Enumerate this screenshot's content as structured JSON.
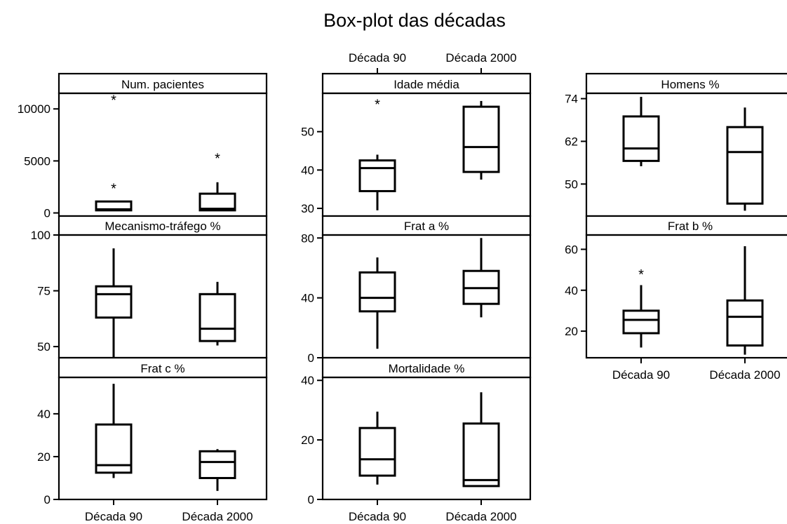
{
  "chart_data": {
    "type": "boxplot",
    "title": "Box-plot das décadas",
    "categories": [
      "Década 90",
      "Década 2000"
    ],
    "panels": [
      {
        "title": "Num. pacientes",
        "yticks": [
          0,
          5000,
          10000
        ],
        "ylim": [
          -300,
          11500
        ],
        "boxes": [
          {
            "category": "Década 90",
            "whisker_low": 250,
            "q1": 250,
            "median": 350,
            "q3": 1100,
            "whisker_high": 1100,
            "outliers": [
              2500,
              11000
            ]
          },
          {
            "category": "Década 2000",
            "whisker_low": 250,
            "q1": 250,
            "median": 400,
            "q3": 1850,
            "whisker_high": 2950,
            "outliers": [
              5400
            ]
          }
        ]
      },
      {
        "title": "Idade média",
        "yticks": [
          30,
          40,
          50
        ],
        "ylim": [
          28,
          60
        ],
        "boxes": [
          {
            "category": "Década 90",
            "whisker_low": 29.5,
            "q1": 34.5,
            "median": 40.5,
            "q3": 42.5,
            "whisker_high": 44,
            "outliers": [
              57.5
            ]
          },
          {
            "category": "Década 2000",
            "whisker_low": 37.5,
            "q1": 39.5,
            "median": 46,
            "q3": 56.5,
            "whisker_high": 58,
            "outliers": []
          }
        ]
      },
      {
        "title": "Homens %",
        "yticks": [
          50,
          62,
          74
        ],
        "ylim": [
          41,
          75.5
        ],
        "boxes": [
          {
            "category": "Década 90",
            "whisker_low": 55,
            "q1": 56.5,
            "median": 60,
            "q3": 69,
            "whisker_high": 74.5,
            "outliers": []
          },
          {
            "category": "Década 2000",
            "whisker_low": 42.5,
            "q1": 44.5,
            "median": 59,
            "q3": 66,
            "whisker_high": 71.5,
            "outliers": []
          }
        ]
      },
      {
        "title": "Mecanismo-tráfego %",
        "yticks": [
          50,
          75,
          100
        ],
        "ylim": [
          45,
          100
        ],
        "boxes": [
          {
            "category": "Década 90",
            "whisker_low": 45,
            "q1": 63,
            "median": 73.5,
            "q3": 77,
            "whisker_high": 94,
            "outliers": []
          },
          {
            "category": "Década 2000",
            "whisker_low": 50.5,
            "q1": 52.5,
            "median": 58,
            "q3": 73.5,
            "whisker_high": 79,
            "outliers": []
          }
        ]
      },
      {
        "title": "Frat a %",
        "yticks": [
          0,
          40,
          80
        ],
        "ylim": [
          0,
          82
        ],
        "boxes": [
          {
            "category": "Década 90",
            "whisker_low": 6,
            "q1": 31,
            "median": 40,
            "q3": 57,
            "whisker_high": 67,
            "outliers": []
          },
          {
            "category": "Década 2000",
            "whisker_low": 27,
            "q1": 36,
            "median": 46.5,
            "q3": 58,
            "whisker_high": 80,
            "outliers": []
          }
        ]
      },
      {
        "title": "Frat b %",
        "yticks": [
          20,
          40,
          60
        ],
        "ylim": [
          7,
          67
        ],
        "boxes": [
          {
            "category": "Década 90",
            "whisker_low": 12,
            "q1": 19,
            "median": 25.5,
            "q3": 30,
            "whisker_high": 42.5,
            "outliers": [
              48.5
            ]
          },
          {
            "category": "Década 2000",
            "whisker_low": 8.5,
            "q1": 13,
            "median": 27,
            "q3": 35,
            "whisker_high": 61.5,
            "outliers": []
          }
        ]
      },
      {
        "title": "Frat c %",
        "yticks": [
          0,
          20,
          40
        ],
        "ylim": [
          0,
          57
        ],
        "boxes": [
          {
            "category": "Década 90",
            "whisker_low": 10,
            "q1": 12.5,
            "median": 16,
            "q3": 35,
            "whisker_high": 54,
            "outliers": []
          },
          {
            "category": "Década 2000",
            "whisker_low": 4,
            "q1": 10,
            "median": 17.5,
            "q3": 22.5,
            "whisker_high": 23.5,
            "outliers": []
          }
        ]
      },
      {
        "title": "Mortalidade %",
        "yticks": [
          0,
          20,
          40
        ],
        "ylim": [
          0,
          41
        ],
        "boxes": [
          {
            "category": "Década 90",
            "whisker_low": 5,
            "q1": 8,
            "median": 13.5,
            "q3": 24,
            "whisker_high": 29.5,
            "outliers": []
          },
          {
            "category": "Década 2000",
            "whisker_low": 4.5,
            "q1": 4.5,
            "median": 6.5,
            "q3": 25.5,
            "whisker_high": 36,
            "outliers": []
          }
        ]
      }
    ]
  }
}
